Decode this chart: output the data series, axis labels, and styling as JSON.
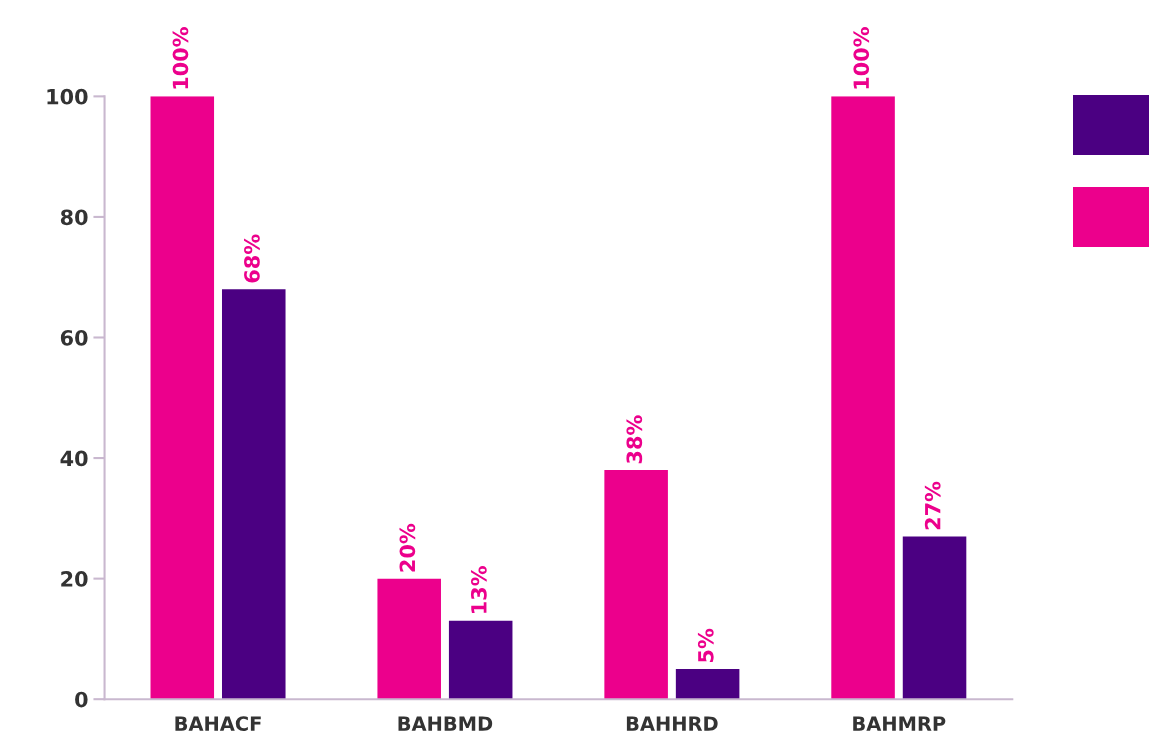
{
  "chart_data": {
    "type": "bar",
    "categories": [
      "BAHACF",
      "BAHBMD",
      "BAHHRD",
      "BAHMRP"
    ],
    "series": [
      {
        "color": "#ec008c",
        "values": [
          100,
          20,
          38,
          100
        ],
        "value_labels": [
          "100%",
          "20%",
          "38%",
          "100%"
        ]
      },
      {
        "color": "#4b0082",
        "values": [
          68,
          13,
          5,
          27
        ],
        "value_labels": [
          "68%",
          "13%",
          "5%",
          "27%"
        ]
      }
    ],
    "ylim": [
      0,
      100
    ],
    "yticks": [
      0,
      20,
      40,
      60,
      80,
      100
    ],
    "grid": false
  }
}
